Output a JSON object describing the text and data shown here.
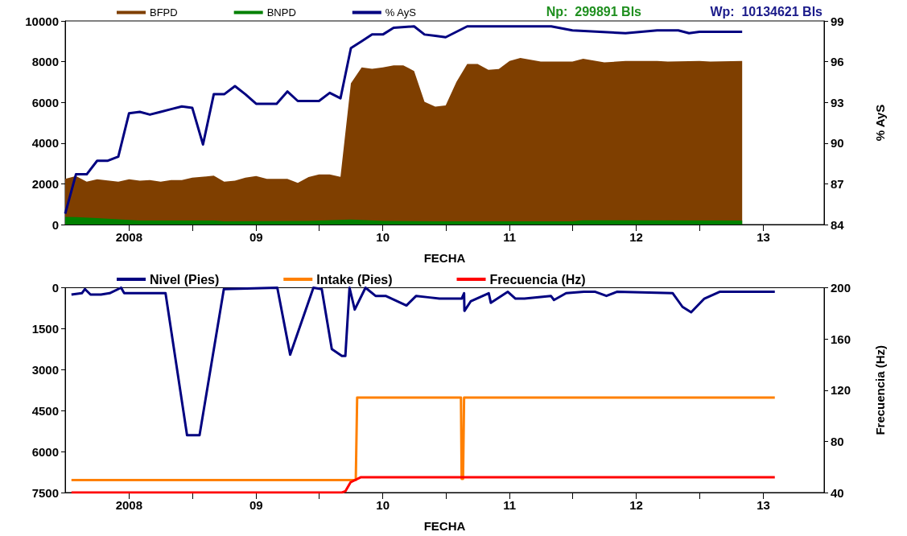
{
  "chart_data": [
    {
      "type": "area",
      "xlabel": "FECHA",
      "y2label": "% AyS",
      "legend": "top",
      "grid": false,
      "marker": "none",
      "annotations": [
        "Np:  299891 Bls",
        "Wp:  10134621 Bls"
      ],
      "xlim": [
        "2007-07-01",
        "2013-06-25"
      ],
      "xticks": [
        {
          "value": "2008-01-01",
          "label": "2008"
        },
        {
          "value": "2009-01-01",
          "label": "09"
        },
        {
          "value": "2010-01-01",
          "label": "10"
        },
        {
          "value": "2011-01-01",
          "label": "11"
        },
        {
          "value": "2012-01-01",
          "label": "12"
        },
        {
          "value": "2013-01-01",
          "label": "13"
        },
        {
          "value": "2008-07-01",
          "label": null
        },
        {
          "value": "2009-07-01",
          "label": null
        },
        {
          "value": "2010-07-01",
          "label": null
        },
        {
          "value": "2011-07-01",
          "label": null
        },
        {
          "value": "2012-07-01",
          "label": null
        }
      ],
      "ylim": [
        0,
        10000
      ],
      "yticks": [
        0,
        2000,
        4000,
        6000,
        8000,
        10000
      ],
      "y2lim": [
        84,
        99
      ],
      "y2ticks": [
        84,
        87,
        90,
        93,
        96,
        99
      ],
      "series": [
        {
          "name": "BFPD",
          "color": "#7f3f00",
          "x": [
            "2007-07",
            "2007-08",
            "2007-09",
            "2007-10",
            "2007-12",
            "2008-01",
            "2008-02",
            "2008-03",
            "2008-04",
            "2008-05",
            "2008-06",
            "2008-07",
            "2008-09",
            "2008-10",
            "2008-11",
            "2008-12",
            "2009-01",
            "2009-02",
            "2009-04",
            "2009-05",
            "2009-06",
            "2009-07",
            "2009-08",
            "2009-09",
            "2009-10",
            "2009-11",
            "2009-12",
            "2010-01",
            "2010-02",
            "2010-03",
            "2010-04",
            "2010-05",
            "2010-06",
            "2010-07",
            "2010-08",
            "2010-09",
            "2010-10",
            "2010-11",
            "2010-12",
            "2011-01",
            "2011-02",
            "2011-04",
            "2011-07",
            "2011-08",
            "2011-10",
            "2011-12",
            "2012-03",
            "2012-04",
            "2012-07",
            "2012-08",
            "2012-11"
          ],
          "values": [
            2240,
            2380,
            2100,
            2220,
            2100,
            2220,
            2150,
            2180,
            2100,
            2180,
            2180,
            2300,
            2400,
            2100,
            2150,
            2300,
            2380,
            2240,
            2240,
            2050,
            2330,
            2460,
            2460,
            2340,
            6940,
            7720,
            7650,
            7720,
            7820,
            7820,
            7540,
            6030,
            5790,
            5850,
            7010,
            7890,
            7890,
            7600,
            7640,
            8030,
            8180,
            8000,
            8000,
            8140,
            7960,
            8030,
            8030,
            8000,
            8030,
            8000,
            8030
          ]
        },
        {
          "name": "BNPD",
          "color": "#008000",
          "x": [
            "2007-07",
            "2007-08",
            "2007-10",
            "2007-12",
            "2008-02",
            "2008-09",
            "2008-10",
            "2009-06",
            "2009-10",
            "2010-01",
            "2010-06",
            "2011-07",
            "2011-08",
            "2012-11"
          ],
          "values": [
            380,
            370,
            320,
            260,
            200,
            200,
            160,
            180,
            250,
            180,
            160,
            160,
            210,
            200
          ]
        },
        {
          "name": "% AyS",
          "type": "line",
          "axis": "y2",
          "color": "#000080",
          "x": [
            "2007-07",
            "2007-08",
            "2007-09",
            "2007-10",
            "2007-11",
            "2007-12",
            "2008-01",
            "2008-02",
            "2008-03",
            "2008-04",
            "2008-05",
            "2008-06",
            "2008-07",
            "2008-08",
            "2008-09",
            "2008-10",
            "2008-11",
            "2008-12",
            "2009-01",
            "2009-03",
            "2009-04",
            "2009-05",
            "2009-07",
            "2009-08",
            "2009-09",
            "2009-10",
            "2009-11",
            "2009-12",
            "2010-01",
            "2010-02",
            "2010-04",
            "2010-05",
            "2010-06",
            "2010-07",
            "2010-09",
            "2010-12",
            "2011-05",
            "2011-07",
            "2011-12",
            "2012-03",
            "2012-05",
            "2012-06",
            "2012-07",
            "2012-11"
          ],
          "values": [
            84.8,
            87.7,
            87.7,
            88.7,
            88.7,
            89.0,
            92.2,
            92.3,
            92.1,
            92.3,
            92.5,
            92.7,
            92.6,
            89.9,
            93.6,
            93.6,
            94.2,
            93.6,
            92.9,
            92.9,
            93.8,
            93.1,
            93.1,
            93.7,
            93.3,
            97.0,
            97.5,
            98.0,
            98.0,
            98.5,
            98.6,
            98.0,
            97.9,
            97.8,
            98.6,
            98.6,
            98.6,
            98.3,
            98.1,
            98.3,
            98.3,
            98.1,
            98.2,
            98.2
          ]
        }
      ]
    },
    {
      "type": "line",
      "xlabel": "FECHA",
      "y2label": "Frecuencia (Hz)",
      "legend": "top",
      "grid": false,
      "marker": "none",
      "xlim": [
        "2007-07-01",
        "2013-06-25"
      ],
      "xticks": [
        {
          "value": "2008-01-01",
          "label": "2008"
        },
        {
          "value": "2009-01-01",
          "label": "09"
        },
        {
          "value": "2010-01-01",
          "label": "10"
        },
        {
          "value": "2011-01-01",
          "label": "11"
        },
        {
          "value": "2012-01-01",
          "label": "12"
        },
        {
          "value": "2013-01-01",
          "label": "13"
        },
        {
          "value": "2008-07-01",
          "label": null
        },
        {
          "value": "2009-07-01",
          "label": null
        },
        {
          "value": "2010-07-01",
          "label": null
        },
        {
          "value": "2011-07-01",
          "label": null
        },
        {
          "value": "2012-07-01",
          "label": null
        }
      ],
      "ylim": [
        7500,
        0
      ],
      "yticks": [
        0,
        1500,
        3000,
        4500,
        6000,
        7500
      ],
      "y2lim": [
        40,
        200
      ],
      "y2ticks": [
        40,
        80,
        120,
        160,
        200
      ],
      "series": [
        {
          "name": "Nivel (Pies)",
          "color": "#000080",
          "x": [
            "2007-07-19",
            "2007-08-18",
            "2007-08-27",
            "2007-09-12",
            "2007-10-12",
            "2007-11-06",
            "2007-12-09",
            "2007-12-18",
            "2008-04-15",
            "2008-06-16",
            "2008-07-22",
            "2008-09-30",
            "2009-03-03",
            "2009-04-09",
            "2009-06-15",
            "2009-07-09",
            "2009-08-07",
            "2009-09-05",
            "2009-09-15",
            "2009-09-27",
            "2009-10-12",
            "2009-11-12",
            "2009-12-11",
            "2010-01-09",
            "2010-03-10",
            "2010-04-07",
            "2010-05-11",
            "2010-06-13",
            "2010-08-16",
            "2010-08-23",
            "2010-08-24",
            "2010-09-11",
            "2010-11-02",
            "2010-11-08",
            "2010-12-27",
            "2011-01-18",
            "2011-02-13",
            "2011-04-30",
            "2011-05-09",
            "2011-06-13",
            "2011-08-03",
            "2011-09-05",
            "2011-10-07",
            "2011-11-06",
            "2012-04-15",
            "2012-05-13",
            "2012-06-07",
            "2012-07-15",
            "2012-08-28",
            "2013-02-03"
          ],
          "values": [
            250,
            200,
            50,
            250,
            250,
            200,
            0,
            200,
            200,
            5400,
            5400,
            50,
            0,
            2450,
            0,
            50,
            2250,
            2500,
            2500,
            0,
            800,
            0,
            300,
            300,
            650,
            300,
            350,
            400,
            400,
            200,
            850,
            500,
            200,
            550,
            150,
            400,
            400,
            300,
            450,
            200,
            150,
            150,
            300,
            150,
            200,
            700,
            900,
            400,
            150,
            150
          ]
        },
        {
          "name": "Intake (Pies)",
          "color": "#ff8000",
          "x": [
            "2007-07-19",
            "2009-10-15",
            "2009-10-19",
            "2010-08-14",
            "2010-08-16",
            "2010-08-20",
            "2010-08-23",
            "2013-02-03"
          ],
          "values": [
            7040,
            7040,
            4020,
            4020,
            7000,
            7000,
            4020,
            4020
          ]
        },
        {
          "name": "Frecuencia (Hz)",
          "axis": "y2",
          "color": "#ff0000",
          "x": [
            "2007-07-19",
            "2009-09-05",
            "2009-09-15",
            "2009-09-30",
            "2009-10-30",
            "2013-02-03"
          ],
          "values": [
            40,
            40,
            41,
            48,
            52,
            52
          ]
        }
      ]
    }
  ]
}
